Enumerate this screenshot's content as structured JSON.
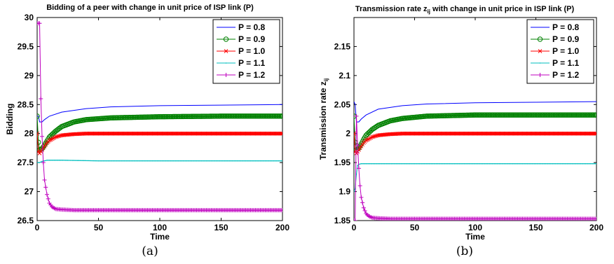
{
  "chart_data": [
    {
      "type": "line",
      "panel": "a",
      "caption": "(a)",
      "title": "Bidding of a peer with change in unit price of ISP link (P)",
      "xlabel": "Time",
      "ylabel": "Bidding",
      "xlim": [
        0,
        200
      ],
      "ylim": [
        26.5,
        30
      ],
      "xticks": [
        "0",
        "50",
        "100",
        "150",
        "200"
      ],
      "yticks": [
        "26.5",
        "27",
        "27.5",
        "28",
        "28.5",
        "29",
        "29.5",
        "30"
      ],
      "legend_position": "top-right",
      "series": [
        {
          "name": "P = 0.8",
          "color": "#0000ff",
          "marker": "none",
          "x": [
            0,
            1,
            2,
            4,
            6,
            10,
            20,
            40,
            60,
            100,
            150,
            200
          ],
          "y": [
            28.3,
            28.3,
            28.2,
            28.2,
            28.24,
            28.3,
            28.37,
            28.43,
            28.46,
            28.48,
            28.49,
            28.5
          ]
        },
        {
          "name": "P = 0.9",
          "color": "#008000",
          "marker": "circle",
          "x": [
            0,
            1,
            2,
            4,
            6,
            8,
            10,
            15,
            20,
            30,
            40,
            60,
            80,
            100,
            150,
            200
          ],
          "y": [
            28.3,
            27.85,
            27.72,
            27.74,
            27.8,
            27.87,
            27.94,
            28.04,
            28.12,
            28.2,
            28.24,
            28.27,
            28.28,
            28.29,
            28.3,
            28.3
          ]
        },
        {
          "name": "P = 1.0",
          "color": "#ff0000",
          "marker": "x",
          "x": [
            0,
            1,
            2,
            4,
            6,
            8,
            10,
            15,
            20,
            30,
            40,
            60,
            100,
            150,
            200
          ],
          "y": [
            28.0,
            27.68,
            27.66,
            27.72,
            27.78,
            27.84,
            27.88,
            27.94,
            27.97,
            27.99,
            28.0,
            28.0,
            28.0,
            28.0,
            28.0
          ]
        },
        {
          "name": "P = 1.1",
          "color": "#00bfbf",
          "marker": "dot",
          "x": [
            0,
            1,
            2,
            4,
            8,
            10,
            20,
            50,
            100,
            150,
            200
          ],
          "y": [
            27.5,
            27.5,
            27.5,
            27.52,
            27.54,
            27.54,
            27.54,
            27.53,
            27.53,
            27.53,
            27.53
          ]
        },
        {
          "name": "P = 1.2",
          "color": "#bf00bf",
          "marker": "plus",
          "x": [
            0,
            1,
            2,
            3,
            4,
            5,
            6,
            8,
            10,
            12,
            15,
            20,
            30,
            50,
            100,
            150,
            200
          ],
          "y": [
            29.9,
            29.9,
            29.9,
            28.6,
            27.95,
            27.5,
            27.2,
            26.95,
            26.8,
            26.74,
            26.7,
            26.69,
            26.68,
            26.68,
            26.68,
            26.68,
            26.68
          ]
        }
      ]
    },
    {
      "type": "line",
      "panel": "b",
      "caption": "(b)",
      "title": "Transmission rate z",
      "title_sub": "ij",
      "title_rest": " with change in unit price in ISP link (P)",
      "xlabel": "Time",
      "ylabel": "Transmission rate z",
      "ylabel_sub": "ij",
      "xlim": [
        0,
        200
      ],
      "ylim": [
        1.85,
        2.2
      ],
      "xticks": [
        "0",
        "50",
        "100",
        "150",
        "200"
      ],
      "yticks": [
        "1.85",
        "1.9",
        "1.95",
        "2",
        "2.05",
        "2.1",
        "2.15"
      ],
      "legend_position": "top-right",
      "series": [
        {
          "name": "P = 0.8",
          "color": "#0000ff",
          "marker": "none",
          "x": [
            0,
            1,
            2,
            4,
            6,
            10,
            20,
            40,
            60,
            100,
            150,
            200
          ],
          "y": [
            2.055,
            2.05,
            2.02,
            2.02,
            2.025,
            2.032,
            2.042,
            2.048,
            2.051,
            2.053,
            2.054,
            2.055
          ]
        },
        {
          "name": "P = 0.9",
          "color": "#008000",
          "marker": "circle",
          "x": [
            0,
            1,
            2,
            4,
            6,
            8,
            10,
            15,
            20,
            30,
            40,
            60,
            80,
            100,
            150,
            200
          ],
          "y": [
            2.03,
            1.985,
            1.972,
            1.975,
            1.982,
            1.99,
            1.997,
            2.007,
            2.014,
            2.022,
            2.026,
            2.03,
            2.031,
            2.032,
            2.032,
            2.032
          ]
        },
        {
          "name": "P = 1.0",
          "color": "#ff0000",
          "marker": "x",
          "x": [
            0,
            1,
            2,
            4,
            6,
            8,
            10,
            15,
            20,
            30,
            40,
            60,
            100,
            150,
            200
          ],
          "y": [
            2.0,
            1.968,
            1.966,
            1.972,
            1.978,
            1.984,
            1.988,
            1.994,
            1.997,
            1.999,
            2.0,
            2.0,
            2.0,
            2.0,
            2.0
          ]
        },
        {
          "name": "P = 1.1",
          "color": "#00bfbf",
          "marker": "dot",
          "x": [
            0,
            1,
            2,
            3,
            4,
            6,
            10,
            20,
            50,
            100,
            150,
            200
          ],
          "y": [
            1.9,
            1.905,
            1.93,
            1.945,
            1.947,
            1.948,
            1.948,
            1.948,
            1.948,
            1.948,
            1.948,
            1.948
          ]
        },
        {
          "name": "P = 1.2",
          "color": "#bf00bf",
          "marker": "plus",
          "x": [
            0,
            1,
            2,
            3,
            4,
            5,
            6,
            8,
            10,
            12,
            15,
            20,
            30,
            50,
            100,
            150,
            200
          ],
          "y": [
            1.85,
            1.85,
            2.03,
            1.98,
            1.94,
            1.91,
            1.89,
            1.872,
            1.862,
            1.858,
            1.855,
            1.854,
            1.853,
            1.853,
            1.853,
            1.853,
            1.853
          ]
        }
      ]
    }
  ]
}
